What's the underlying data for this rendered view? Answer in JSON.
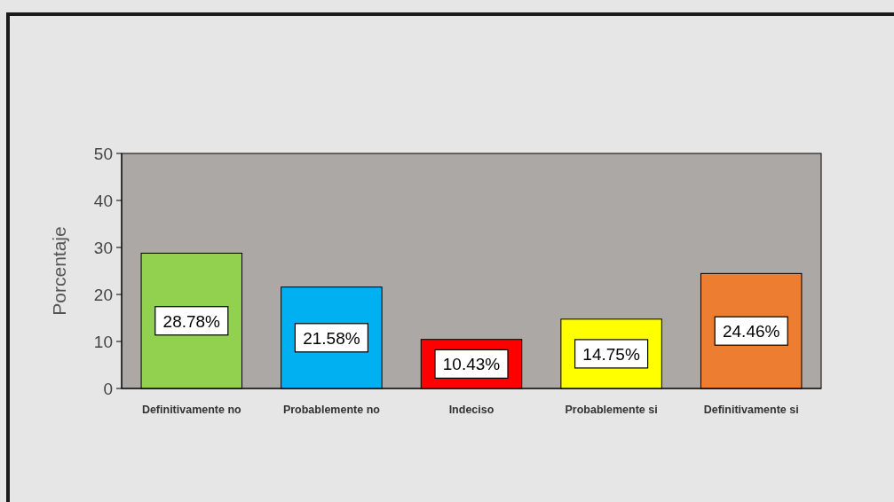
{
  "chart_data": {
    "type": "bar",
    "ylabel": "Porcentaje",
    "categories": [
      "Definitivamente no",
      "Probablemente no",
      "Indeciso",
      "Probablemente si",
      "Definitivamente si"
    ],
    "values": [
      28.78,
      21.58,
      10.43,
      14.75,
      24.46
    ],
    "colors": [
      "#92d050",
      "#00b0f0",
      "#ff0000",
      "#ffff00",
      "#ed7d31"
    ],
    "value_labels": [
      "28.78%",
      "21.58%",
      "10.43%",
      "14.75%",
      "24.46%"
    ],
    "ylim": [
      0,
      50
    ],
    "yticks": [
      0,
      10,
      20,
      30,
      40,
      50
    ],
    "grid": false
  }
}
